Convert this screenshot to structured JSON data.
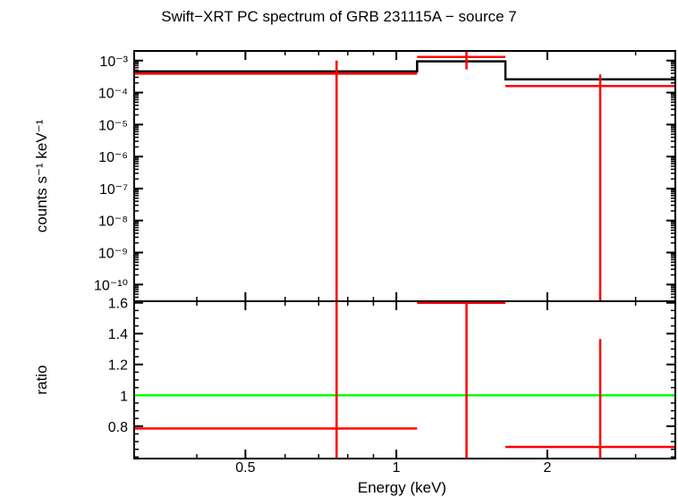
{
  "chart_data": {
    "title": "Swift−XRT PC spectrum of GRB 231115A − source 7",
    "xlabel": "Energy (keV)",
    "x_scale": "log",
    "xlim": [
      0.3,
      3.6
    ],
    "x_ticks": [
      {
        "value": 0.5,
        "label": "0.5"
      },
      {
        "value": 1,
        "label": "1"
      },
      {
        "value": 2,
        "label": "2"
      }
    ],
    "panels": [
      {
        "type": "step+errorbar",
        "ylabel": "counts s⁻¹ keV⁻¹",
        "y_scale": "log",
        "ylim": [
          3e-11,
          0.002
        ],
        "y_ticks": [
          {
            "value": 0.001,
            "label": "10⁻³"
          },
          {
            "value": 0.0001,
            "label": "10⁻⁴"
          },
          {
            "value": 1e-05,
            "label": "10⁻⁵"
          },
          {
            "value": 1e-06,
            "label": "10⁻⁶"
          },
          {
            "value": 1e-07,
            "label": "10⁻⁷"
          },
          {
            "value": 1e-08,
            "label": "10⁻⁸"
          },
          {
            "value": 1e-09,
            "label": "10⁻⁹"
          },
          {
            "value": 1e-10,
            "label": "10⁻¹⁰"
          }
        ],
        "model": {
          "color": "#000000",
          "steps": [
            {
              "x0": 0.3,
              "x1": 1.1,
              "y": 0.00046
            },
            {
              "x0": 1.1,
              "x1": 1.65,
              "y": 0.00095
            },
            {
              "x0": 1.65,
              "x1": 3.6,
              "y": 0.00026
            }
          ]
        },
        "data": {
          "color": "#ff0000",
          "points": [
            {
              "x": 0.76,
              "xlo": 0.3,
              "xhi": 1.1,
              "y": 0.00039,
              "ylo": 3e-11,
              "yhi": 0.001
            },
            {
              "x": 1.38,
              "xlo": 1.1,
              "xhi": 1.65,
              "y": 0.0013,
              "ylo": 0.00053,
              "yhi": 0.002
            },
            {
              "x": 2.55,
              "xlo": 1.65,
              "xhi": 3.6,
              "y": 0.00016,
              "ylo": 3e-11,
              "yhi": 0.00037
            }
          ]
        }
      },
      {
        "type": "ratio",
        "ylabel": "ratio",
        "y_scale": "linear",
        "ylim": [
          0.59,
          1.61
        ],
        "y_ticks": [
          {
            "value": 0.8,
            "label": "0.8"
          },
          {
            "value": 1,
            "label": "1"
          },
          {
            "value": 1.2,
            "label": "1.2"
          },
          {
            "value": 1.4,
            "label": "1.4"
          },
          {
            "value": 1.6,
            "label": "1.6"
          }
        ],
        "reference_line": {
          "y": 1,
          "color": "#00ff00"
        },
        "data": {
          "color": "#ff0000",
          "points": [
            {
              "x": 0.76,
              "xlo": 0.3,
              "xhi": 1.1,
              "y": 0.785,
              "ylo": 0.59,
              "yhi": 1.61
            },
            {
              "x": 1.38,
              "xlo": 1.1,
              "xhi": 1.65,
              "y": 1.6,
              "ylo": 0.59,
              "yhi": 1.61
            },
            {
              "x": 2.55,
              "xlo": 1.65,
              "xhi": 3.6,
              "y": 0.665,
              "ylo": 0.59,
              "yhi": 1.365
            }
          ]
        }
      }
    ]
  }
}
